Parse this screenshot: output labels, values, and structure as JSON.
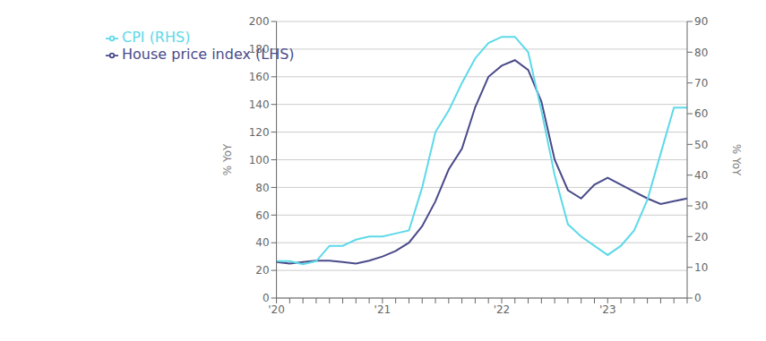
{
  "chart_data": {
    "type": "line",
    "ylabel": "% YoY",
    "y2label": "% YoY",
    "categories": [
      "'20",
      null,
      null,
      null,
      null,
      null,
      null,
      null,
      "'21",
      null,
      null,
      null,
      null,
      null,
      null,
      null,
      null,
      "'22",
      null,
      null,
      null,
      null,
      null,
      null,
      null,
      "'23",
      null,
      null,
      null,
      null,
      null,
      null
    ],
    "series": [
      {
        "name": "House price index (LHS)",
        "color": "#4a4a8a",
        "values": [
          26,
          25,
          26,
          27,
          27,
          26,
          25,
          27,
          30,
          34,
          40,
          52,
          70,
          93,
          108,
          138,
          160,
          168,
          172,
          165,
          142,
          100,
          78,
          72,
          82,
          87,
          82,
          77,
          72,
          68,
          70,
          72
        ]
      },
      {
        "name": "CPI (RHS)",
        "color": "#5dd9e8",
        "axis": "y2",
        "values": [
          12,
          12,
          11,
          12,
          17,
          17,
          19,
          20,
          20,
          21,
          22,
          36,
          54,
          61,
          70,
          78,
          83,
          85,
          85,
          80,
          61,
          40,
          24,
          20,
          17,
          14,
          17,
          22,
          32,
          47,
          62,
          62
        ]
      }
    ],
    "ylim": [
      0,
      200
    ],
    "yticks": [
      0,
      20,
      40,
      60,
      80,
      100,
      120,
      140,
      160,
      180,
      200
    ],
    "y2lim": [
      0,
      90
    ],
    "y2ticks": [
      0,
      10,
      20,
      30,
      40,
      50,
      60,
      70,
      80,
      90
    ],
    "grid": true,
    "legend": "upper left"
  }
}
